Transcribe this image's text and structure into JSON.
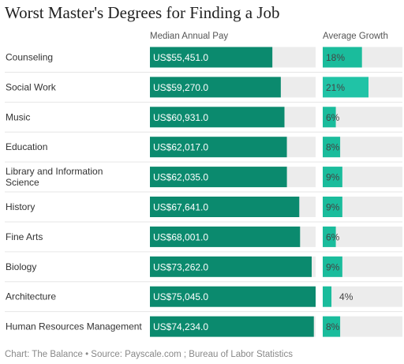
{
  "chart_data": {
    "type": "bar",
    "title": "Worst Master's Degrees for Finding a Job",
    "columns": [
      {
        "name": "Median Annual Pay",
        "max": 75045.0
      },
      {
        "name": "Average Growth",
        "max": 0.21
      }
    ],
    "categories": [
      "Counseling",
      "Social Work",
      "Music",
      "Education",
      "Library and Information Science",
      "History",
      "Fine Arts",
      "Biology",
      "Architecture",
      "Human Resources Management"
    ],
    "series": [
      {
        "name": "Median Annual Pay",
        "values": [
          55451.0,
          59270.0,
          60931.0,
          62017.0,
          62035.0,
          67641.0,
          68001.0,
          73262.0,
          75045.0,
          74234.0
        ],
        "labels": [
          "US$55,451.0",
          "US$59,270.0",
          "US$60,931.0",
          "US$62,017.0",
          "US$62,035.0",
          "US$67,641.0",
          "US$68,001.0",
          "US$73,262.0",
          "US$75,045.0",
          "US$74,234.0"
        ]
      },
      {
        "name": "Average Growth",
        "values": [
          0.18,
          0.21,
          0.06,
          0.08,
          0.09,
          0.09,
          0.06,
          0.09,
          0.04,
          0.08
        ],
        "labels": [
          "18%",
          "21%",
          "6%",
          "8%",
          "9%",
          "9%",
          "6%",
          "9%",
          "4%",
          "8%"
        ]
      }
    ],
    "colors": {
      "pay_bar": "#0b8a6e",
      "growth_bar": "#1abc9c",
      "growth_bar_max": "#20c3a6",
      "track": "#ececec",
      "label_on_bar": "#ffffff",
      "label_off_bar": "#444444"
    },
    "source": "Chart: The Balance • Source: Payscale.com ; Bureau of Labor Statistics"
  }
}
